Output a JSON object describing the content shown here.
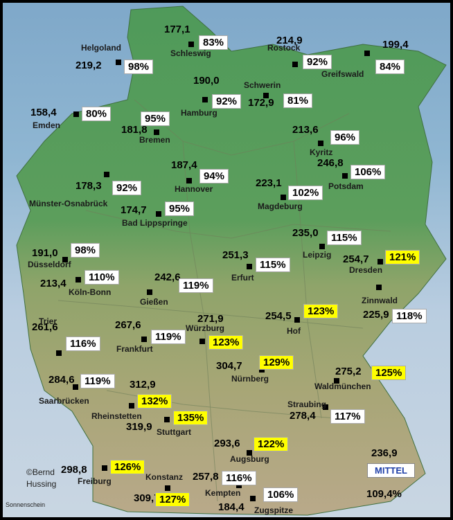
{
  "colors": {
    "sea": "#8fb6d2",
    "lowland": "#4f9a5a",
    "upland": "#9aa56e",
    "alps": "#b9a98a",
    "highlight": "#ffff00",
    "mittel_text": "#1f3fa8"
  },
  "stations": [
    {
      "id": "schleswig",
      "name": "Schleswig",
      "value": "177,1",
      "pct": "83%",
      "hi": false
    },
    {
      "id": "helgoland",
      "name": "Helgoland",
      "value": "219,2",
      "pct": "98%",
      "hi": false
    },
    {
      "id": "rostock",
      "name": "Rostock",
      "value": "214,9",
      "pct": "92%",
      "hi": false
    },
    {
      "id": "greifswald",
      "name": "Greifswald",
      "value": "199,4",
      "pct": "84%",
      "hi": false
    },
    {
      "id": "hamburg",
      "name": "Hamburg",
      "value": "190,0",
      "pct": "92%",
      "hi": false
    },
    {
      "id": "schwerin",
      "name": "Schwerin",
      "value": "172,9",
      "pct": "81%",
      "hi": false
    },
    {
      "id": "emden",
      "name": "Emden",
      "value": "158,4",
      "pct": "80%",
      "hi": false
    },
    {
      "id": "bremen",
      "name": "Bremen",
      "value": "181,8",
      "pct": "95%",
      "hi": false
    },
    {
      "id": "kyritz",
      "name": "Kyritz",
      "value": "213,6",
      "pct": "96%",
      "hi": false
    },
    {
      "id": "potsdam",
      "name": "Potsdam",
      "value": "246,8",
      "pct": "106%",
      "hi": false
    },
    {
      "id": "hannover",
      "name": "Hannover",
      "value": "187,4",
      "pct": "94%",
      "hi": false
    },
    {
      "id": "muenster",
      "name": "Münster-Osnabrück",
      "value": "178,3",
      "pct": "92%",
      "hi": false
    },
    {
      "id": "magdeburg",
      "name": "Magdeburg",
      "value": "223,1",
      "pct": "102%",
      "hi": false
    },
    {
      "id": "badlippspringe",
      "name": "Bad Lippspringe",
      "value": "174,7",
      "pct": "95%",
      "hi": false
    },
    {
      "id": "leipzig",
      "name": "Leipzig",
      "value": "235,0",
      "pct": "115%",
      "hi": false
    },
    {
      "id": "duesseldorf",
      "name": "Düsseldorf",
      "value": "191,0",
      "pct": "98%",
      "hi": false
    },
    {
      "id": "erfurt",
      "name": "Erfurt",
      "value": "251,3",
      "pct": "115%",
      "hi": false
    },
    {
      "id": "dresden",
      "name": "Dresden",
      "value": "254,7",
      "pct": "121%",
      "hi": true
    },
    {
      "id": "koelnbonn",
      "name": "Köln-Bonn",
      "value": "213,4",
      "pct": "110%",
      "hi": false
    },
    {
      "id": "giessen",
      "name": "Gießen",
      "value": "242,6",
      "pct": "119%",
      "hi": false
    },
    {
      "id": "zinnwald",
      "name": "Zinnwald",
      "value": "225,9",
      "pct": "118%",
      "hi": false
    },
    {
      "id": "hof",
      "name": "Hof",
      "value": "254,5",
      "pct": "123%",
      "hi": true
    },
    {
      "id": "wuerzburg",
      "name": "Würzburg",
      "value": "271,9",
      "pct": "123%",
      "hi": true
    },
    {
      "id": "trier",
      "name": "Trier",
      "value": "261,6",
      "pct": "116%",
      "hi": false
    },
    {
      "id": "frankfurt",
      "name": "Frankfurt",
      "value": "267,6",
      "pct": "119%",
      "hi": false
    },
    {
      "id": "nuernberg",
      "name": "Nürnberg",
      "value": "304,7",
      "pct": "129%",
      "hi": true
    },
    {
      "id": "waldmuenchen",
      "name": "Waldmünchen",
      "value": "275,2",
      "pct": "125%",
      "hi": true
    },
    {
      "id": "saarbruecken",
      "name": "Saarbrücken",
      "value": "284,6",
      "pct": "119%",
      "hi": false
    },
    {
      "id": "rheinstetten",
      "name": "Rheinstetten",
      "value": "312,9",
      "pct": "132%",
      "hi": true
    },
    {
      "id": "straubing",
      "name": "Straubing",
      "value": "278,4",
      "pct": "117%",
      "hi": false
    },
    {
      "id": "stuttgart",
      "name": "Stuttgart",
      "value": "319,9",
      "pct": "135%",
      "hi": true
    },
    {
      "id": "augsburg",
      "name": "Augsburg",
      "value": "293,6",
      "pct": "122%",
      "hi": true
    },
    {
      "id": "freiburg",
      "name": "Freiburg",
      "value": "298,8",
      "pct": "126%",
      "hi": true
    },
    {
      "id": "kempten",
      "name": "Kempten",
      "value": "257,8",
      "pct": "116%",
      "hi": false
    },
    {
      "id": "konstanz",
      "name": "Konstanz",
      "value": "309,7",
      "pct": "127%",
      "hi": true
    },
    {
      "id": "zugspitze",
      "name": "Zugspitze",
      "value": "184,4",
      "pct": "106%",
      "hi": false
    }
  ],
  "mittel": {
    "label": "MITTEL",
    "value": "236,9",
    "pct": "109,4%"
  },
  "credit": {
    "line1": "©Bernd",
    "line2": "Hussing",
    "caption": "Sonnenschein"
  }
}
